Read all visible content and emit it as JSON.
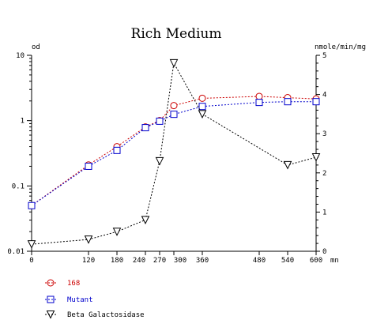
{
  "chart_data": {
    "type": "line",
    "title": "Rich Medium",
    "y_left_unit": "od",
    "y_right_unit": "nmole/min/mg",
    "x_unit": "mn",
    "x_ticks": [
      "0",
      "120",
      "180",
      "240",
      "270",
      "300",
      "360",
      "480",
      "540",
      "600"
    ],
    "y_left_ticks": [
      "0.01",
      "0.1",
      "1",
      "10"
    ],
    "y_right_ticks": [
      "0",
      "1",
      "2",
      "3",
      "4",
      "5"
    ],
    "xlim": [
      0,
      600
    ],
    "y_left_lim": [
      0.01,
      10
    ],
    "y_left_scale": "log",
    "y_right_lim": [
      0,
      5
    ],
    "series": [
      {
        "name": "168",
        "axis": "left",
        "marker": "circle",
        "color": "#cc0000",
        "x": [
          0,
          120,
          180,
          240,
          270,
          300,
          360,
          480,
          540,
          600
        ],
        "y": [
          0.05,
          0.21,
          0.4,
          0.8,
          1.0,
          1.7,
          2.2,
          2.35,
          2.25,
          2.15
        ]
      },
      {
        "name": "Mutant",
        "axis": "left",
        "marker": "square",
        "color": "#0000cc",
        "x": [
          0,
          120,
          180,
          240,
          270,
          300,
          360,
          480,
          540,
          600
        ],
        "y": [
          0.05,
          0.2,
          0.35,
          0.78,
          0.98,
          1.25,
          1.65,
          1.9,
          1.95,
          1.95
        ]
      },
      {
        "name": "Beta Galactosidase",
        "axis": "right",
        "marker": "triangle-down",
        "color": "#000000",
        "x": [
          0,
          120,
          180,
          240,
          270,
          300,
          360,
          540,
          600
        ],
        "y": [
          0.18,
          0.3,
          0.5,
          0.8,
          2.3,
          4.8,
          3.5,
          2.2,
          2.4
        ]
      }
    ],
    "legend": "bottom-left",
    "grid": false
  }
}
